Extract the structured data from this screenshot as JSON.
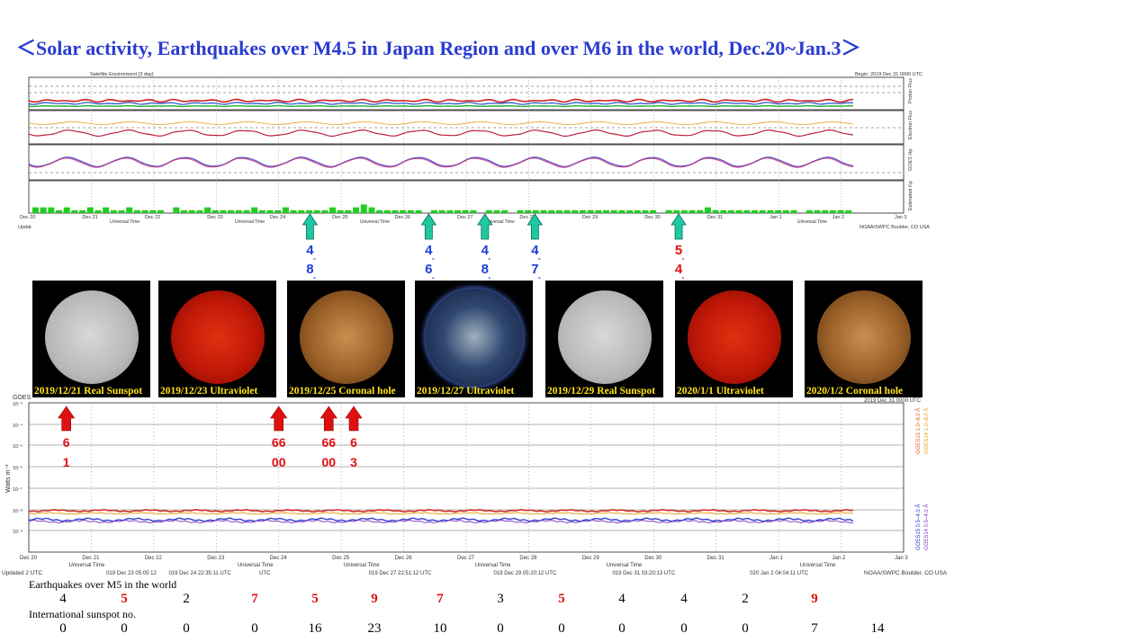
{
  "title": "＜Solar activity, Earthquakes over M4.5 in Japan Region and over M6 in the world,   Dec.20~Jan.3＞",
  "colors": {
    "title": "#2a3bd1",
    "quake_jp": "#1f3fd6",
    "quake_world": "#e01010",
    "teal_arrow": "#1ec9a0",
    "red_arrow": "#e01010",
    "kp_bar": "#22cc22",
    "caption": "#ffe21a"
  },
  "top_panel": {
    "header_left": "Satellite Environment (3 day)",
    "header_right": "Begin: 2019 Dec 31 0000 UTC",
    "footer_right": "NOAA/SWPC Boulder, CO USA",
    "footer_left": "Updat",
    "right_labels": [
      "Proton Flux",
      "Electron Flux",
      "GOES Hp",
      "Estimated Kp"
    ],
    "x_ticks": [
      "Dec 20",
      "Dec 21",
      "Dec 22",
      "Dec 23",
      "Dec 24",
      "Dec 25",
      "Dec 26",
      "Dec 27",
      "Dec 28",
      "Dec 29",
      "Dec 30",
      "Dec 31",
      "Jan 1",
      "Jan 2",
      "Jan 3"
    ],
    "ut_label": "Universal Time",
    "kp_values": [
      2,
      2,
      2,
      1,
      2,
      1,
      1,
      2,
      1,
      2,
      1,
      1,
      2,
      1,
      1,
      1,
      1,
      0,
      2,
      1,
      1,
      1,
      2,
      1,
      1,
      1,
      1,
      1,
      2,
      1,
      1,
      1,
      2,
      1,
      1,
      1,
      1,
      1,
      2,
      1,
      1,
      2,
      3,
      2,
      1,
      1,
      1,
      1,
      1,
      1,
      0,
      1,
      1,
      1,
      1,
      1,
      1,
      0,
      1,
      1,
      1,
      0,
      1,
      1,
      1,
      1,
      1,
      1,
      1,
      1,
      1,
      1,
      1,
      1,
      1,
      1,
      1,
      1,
      1,
      1,
      0,
      1,
      1,
      1,
      1,
      1,
      2,
      1,
      1,
      1,
      1,
      1,
      1,
      1,
      1,
      1,
      1,
      1,
      0,
      1,
      1,
      1,
      1,
      1,
      1
    ]
  },
  "top_arrows": [
    {
      "day": 4.5,
      "digits": [
        "4",
        "8"
      ],
      "kind": "jp"
    },
    {
      "day": 6.4,
      "digits": [
        "4",
        "6"
      ],
      "kind": "jp"
    },
    {
      "day": 7.3,
      "digits": [
        "4",
        "8"
      ],
      "kind": "jp"
    },
    {
      "day": 8.1,
      "digits": [
        "4",
        "7"
      ],
      "kind": "jp"
    },
    {
      "day": 10.4,
      "digits": [
        "5",
        "4"
      ],
      "kind": "world"
    }
  ],
  "images": [
    {
      "caption": "2019/12/21 Real Sunspot",
      "kind": "white"
    },
    {
      "caption": "2019/12/23 Ultraviolet",
      "kind": "red"
    },
    {
      "caption": "2019/12/25 Coronal hole",
      "kind": "orange"
    },
    {
      "caption": "2019/12/27 Ultraviolet",
      "kind": "blue"
    },
    {
      "caption": "2019/12/29 Real Sunspot",
      "kind": "white"
    },
    {
      "caption": "2020/1/1 Ultraviolet",
      "kind": "red"
    },
    {
      "caption": "2020/1/2 Coronal hole",
      "kind": "orange"
    }
  ],
  "bottom_panel": {
    "header_left": "GOES",
    "header_right": "2019 Dec 31 0000 UTC",
    "y_label": "Watts m⁻²",
    "y_ticks": [
      "10⁻³",
      "10⁻⁴",
      "10⁻⁵",
      "10⁻⁶",
      "10⁻⁷",
      "10⁻⁸",
      "10⁻⁹"
    ],
    "right_legend": [
      "GOES15 1.0–8.0 Å",
      "GOES14 1.0–8.0 Å",
      "GOES15 0.5–4.0 Å",
      "GOES14 0.5–4.0 Å"
    ],
    "x_ticks": [
      "Dec 20",
      "Dec 21",
      "Dec 22",
      "Dec 23",
      "Dec 24",
      "Dec 25",
      "Dec 26",
      "Dec 27",
      "Dec 28",
      "Dec 29",
      "Dec 30",
      "Dec 31",
      "Jan 1",
      "Jan 2",
      "Jan 3"
    ],
    "ut_label": "Universal Time",
    "footer_left": "Updated 2 UTC",
    "footer_right": "NOAA/SWPC Boulder, CO USA",
    "footer_stamps": [
      "019 Dec 23 05:05:12",
      "019 Dec 24 22:35:11 UTC",
      "UTC",
      "019 Dec 27 22:51:12 UTC",
      "019 Dec 29 05:20:12 UTC",
      "019 Dec 31 03:20:13 UTC",
      "020 Jan  2 04:04:11 UTC"
    ]
  },
  "bottom_arrows": [
    {
      "day": 0.6,
      "digits": [
        "6",
        "1"
      ]
    },
    {
      "day": 4.0,
      "digits": [
        "66",
        "00"
      ]
    },
    {
      "day": 4.8,
      "digits": [
        "66",
        "00"
      ]
    },
    {
      "day": 5.2,
      "digits": [
        "6",
        "3"
      ]
    }
  ],
  "rows": {
    "earthquakes_label": "Earthquakes over M5 in the world",
    "sunspot_label": "International sunspot no."
  },
  "chart_data": {
    "type": "table",
    "title": "Solar activity, Earthquakes over M4.5 in Japan Region and over M6 in the world, Dec.20~Jan.3",
    "earthquakes_over_m5_world": {
      "values": [
        "4",
        "5",
        "2",
        "7",
        "5",
        "9",
        "7",
        "3",
        "5",
        "4",
        "4",
        "2",
        "9"
      ],
      "highlight": [
        false,
        true,
        false,
        true,
        true,
        true,
        true,
        false,
        true,
        false,
        false,
        false,
        true
      ]
    },
    "international_sunspot_no": {
      "values": [
        "0",
        "0",
        "0",
        "0",
        "16",
        "23",
        "10",
        "0",
        "0",
        "0",
        "0",
        "0",
        "7",
        "14"
      ]
    }
  }
}
